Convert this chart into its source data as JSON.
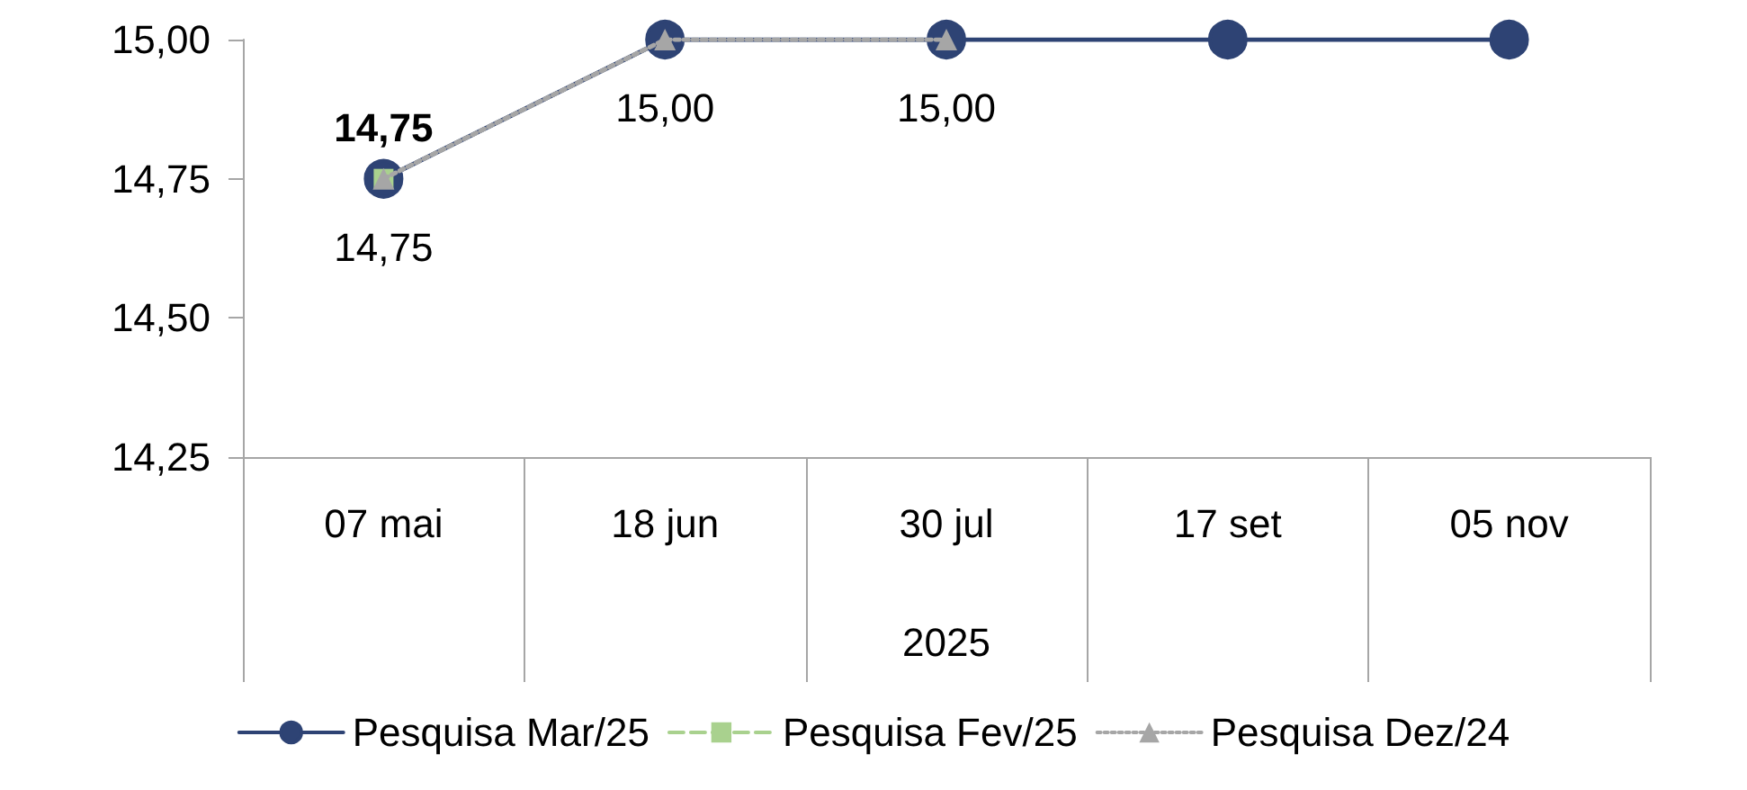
{
  "chart_data": {
    "type": "line",
    "xlabel": "2025",
    "categories": [
      "07 mai",
      "18 jun",
      "30 jul",
      "17 set",
      "05 nov"
    ],
    "series": [
      {
        "name": "Pesquisa Mar/25",
        "color": "#2e4374",
        "marker": "circle",
        "line_style": "solid",
        "values": [
          14.75,
          15.0,
          15.0,
          15.0,
          15.0
        ],
        "value_labels": [
          "14,75",
          "15,00",
          "15,00",
          null,
          null
        ]
      },
      {
        "name": "Pesquisa Fev/25",
        "color": "#a9d18e",
        "marker": "square",
        "line_style": "dashed",
        "values": [
          14.75,
          null,
          null,
          null,
          null
        ],
        "value_labels": [
          "14,75",
          null,
          null,
          null,
          null
        ]
      },
      {
        "name": "Pesquisa Dez/24",
        "color": "#a6a6a6",
        "marker": "triangle",
        "line_style": "dotted",
        "values": [
          14.75,
          15.0,
          15.0,
          null,
          null
        ]
      }
    ],
    "ylim": [
      14.25,
      15.0
    ],
    "yticks": [
      {
        "value": 14.25,
        "label": "14,25"
      },
      {
        "value": 14.5,
        "label": "14,50"
      },
      {
        "value": 14.75,
        "label": "14,75"
      },
      {
        "value": 15.0,
        "label": "15,00"
      }
    ],
    "grid": false,
    "legend": "bottom"
  }
}
